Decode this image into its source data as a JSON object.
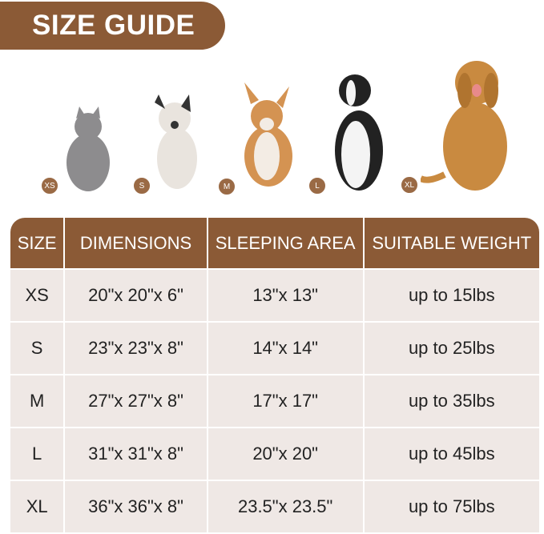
{
  "title": "SIZE GUIDE",
  "colors": {
    "brand": "#8b5a36",
    "cell": "#efe8e5"
  },
  "pets": [
    {
      "size": "XS",
      "animal": "cat",
      "color": "#8d8c8e"
    },
    {
      "size": "S",
      "animal": "french-bulldog",
      "color": "#e9e4de"
    },
    {
      "size": "M",
      "animal": "corgi",
      "color": "#d49352"
    },
    {
      "size": "L",
      "animal": "border-collie",
      "color": "#222222"
    },
    {
      "size": "XL",
      "animal": "golden-retriever",
      "color": "#c98a40"
    }
  ],
  "table": {
    "headers": [
      "SIZE",
      "DIMENSIONS",
      "SLEEPING AREA",
      "SUITABLE WEIGHT"
    ],
    "rows": [
      [
        "XS",
        "20\"x 20\"x 6\"",
        "13\"x 13\"",
        "up to 15lbs"
      ],
      [
        "S",
        "23\"x 23\"x 8\"",
        "14\"x 14\"",
        "up to 25lbs"
      ],
      [
        "M",
        "27\"x 27\"x 8\"",
        "17\"x 17\"",
        "up to 35lbs"
      ],
      [
        "L",
        "31\"x 31\"x 8\"",
        "20\"x 20\"",
        "up to 45lbs"
      ],
      [
        "XL",
        "36\"x 36\"x 8\"",
        "23.5\"x 23.5\"",
        "up to 75lbs"
      ]
    ]
  }
}
